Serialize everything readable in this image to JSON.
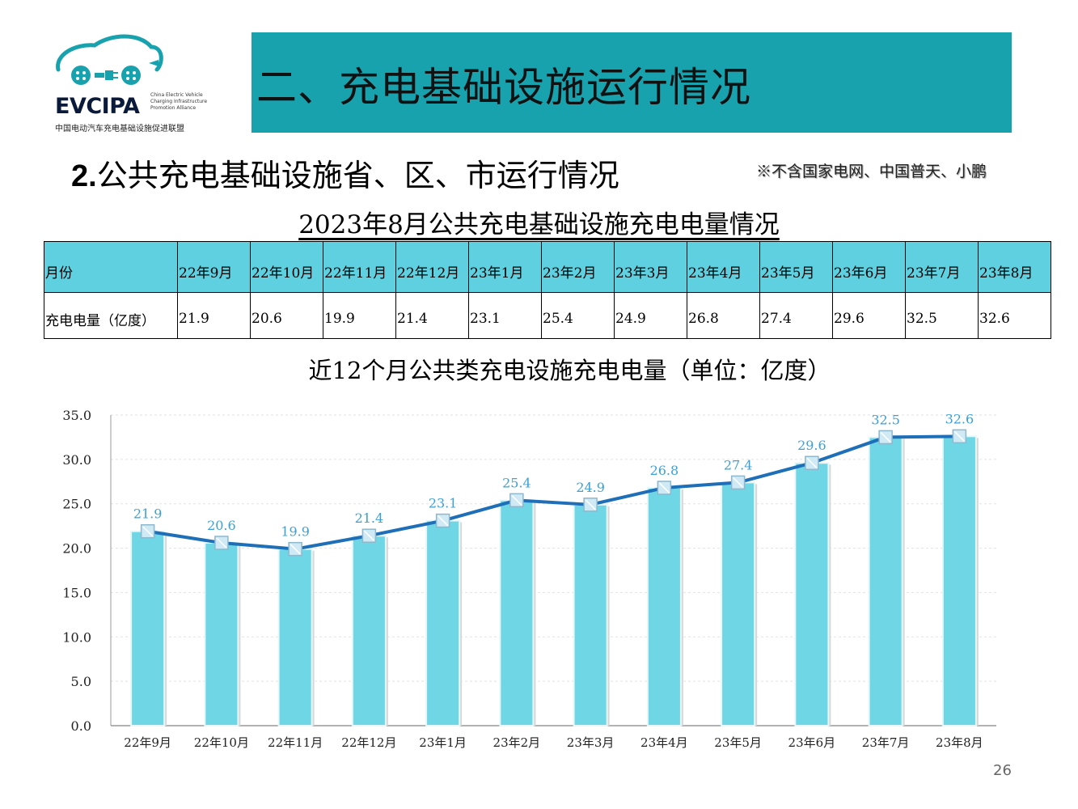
{
  "logo": {
    "name": "EVCIPA",
    "subtitle_en_1": "China Electric Vehicle",
    "subtitle_en_2": "Charging Infrastructure",
    "subtitle_en_3": "Promotion Alliance",
    "subtitle_cn": "中国电动汽车充电基础设施促进联盟",
    "colors": {
      "primary": "#17a2ae",
      "text": "#0a1a3a"
    }
  },
  "header": {
    "title": "二、充电基础设施运行情况",
    "banner_color": "#17a2ae"
  },
  "section": {
    "number": "2.",
    "title": "公共充电基础设施省、区、市运行情况",
    "note": "※不含国家电网、中国普天、小鹏"
  },
  "table": {
    "title": "2023年8月公共充电基础设施充电电量情况",
    "header_label": "月份",
    "row_label": "充电电量（亿度）",
    "months": [
      "22年9月",
      "22年10月",
      "22年11月",
      "22年12月",
      "23年1月",
      "23年2月",
      "23年3月",
      "23年4月",
      "23年5月",
      "23年6月",
      "23年7月",
      "23年8月"
    ],
    "values": [
      "21.9",
      "20.6",
      "19.9",
      "21.4",
      "23.1",
      "25.4",
      "24.9",
      "26.8",
      "27.4",
      "29.6",
      "32.5",
      "32.6"
    ],
    "header_color": "#5fd0e0"
  },
  "chart_data": {
    "type": "bar",
    "title": "近12个月公共类充电设施充电电量（单位：亿度）",
    "categories": [
      "22年9月",
      "22年10月",
      "22年11月",
      "22年12月",
      "23年1月",
      "23年2月",
      "23年3月",
      "23年4月",
      "23年5月",
      "23年6月",
      "23年7月",
      "23年8月"
    ],
    "values": [
      21.9,
      20.6,
      19.9,
      21.4,
      23.1,
      25.4,
      24.9,
      26.8,
      27.4,
      29.6,
      32.5,
      32.6
    ],
    "overlay_line": true,
    "ylim": [
      0,
      35
    ],
    "yticks": [
      "0.0",
      "5.0",
      "10.0",
      "15.0",
      "20.0",
      "25.0",
      "30.0",
      "35.0"
    ],
    "grid": true,
    "colors": {
      "bar": "#6fd6e6",
      "line": "#1f6fb8",
      "label": "#3aa0d8",
      "marker": "#cfe9f5"
    }
  },
  "page": {
    "number": "26"
  }
}
